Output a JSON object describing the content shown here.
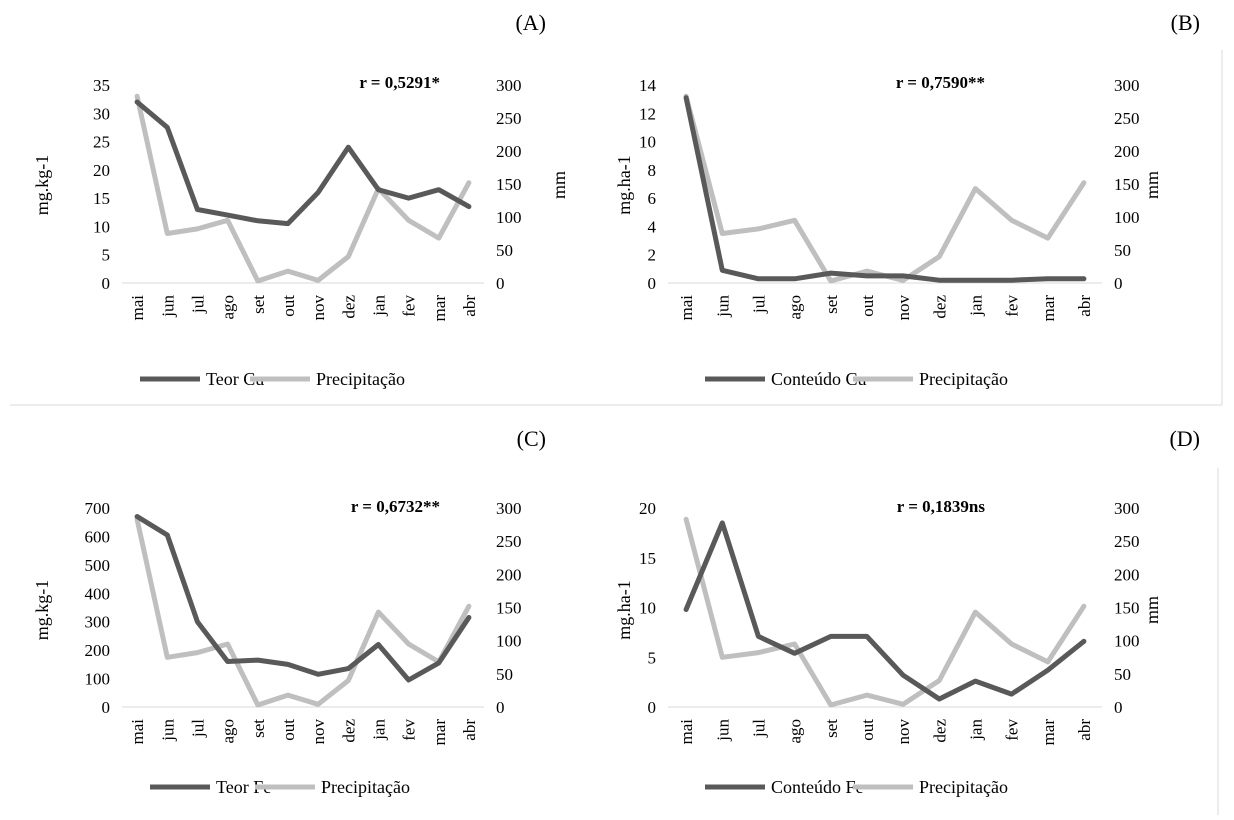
{
  "chart_data": [
    {
      "panel": "(A)",
      "type": "line",
      "categories": [
        "mai",
        "jun",
        "jul",
        "ago",
        "set",
        "out",
        "nov",
        "dez",
        "jan",
        "fev",
        "mar",
        "abr"
      ],
      "annotation": "r = 0,5291*",
      "ylabel_left": "mg.kg-1",
      "ylabel_right": "mm",
      "ylim_left": [
        0,
        35
      ],
      "yticks_left": [
        "0",
        "5",
        "10",
        "15",
        "20",
        "25",
        "30",
        "35"
      ],
      "ylim_right": [
        0,
        300
      ],
      "yticks_right": [
        "0",
        "50",
        "100",
        "150",
        "200",
        "250",
        "300"
      ],
      "series": [
        {
          "name": "Teor Cu",
          "axis": "left",
          "color": "#595959",
          "values": [
            32,
            27.5,
            13,
            12,
            11,
            10.5,
            16,
            24,
            16.5,
            15,
            16.5,
            13.5
          ]
        },
        {
          "name": "Precipitação",
          "axis": "right",
          "color": "#bfbfbf",
          "values": [
            283,
            75,
            82,
            95,
            3,
            18,
            4,
            40,
            143,
            95,
            68,
            152
          ]
        }
      ]
    },
    {
      "panel": "(B)",
      "type": "line",
      "categories": [
        "mai",
        "jun",
        "jul",
        "ago",
        "set",
        "out",
        "nov",
        "dez",
        "jan",
        "fev",
        "mar",
        "abr"
      ],
      "annotation": "r = 0,7590**",
      "ylabel_left": "mg.ha-1",
      "ylabel_right": "mm",
      "ylim_left": [
        0,
        14
      ],
      "yticks_left": [
        "0",
        "2",
        "4",
        "6",
        "8",
        "10",
        "12",
        "14"
      ],
      "ylim_right": [
        0,
        300
      ],
      "yticks_right": [
        "0",
        "50",
        "100",
        "150",
        "200",
        "250",
        "300"
      ],
      "series": [
        {
          "name": "Conteúdo Cu",
          "axis": "left",
          "color": "#595959",
          "values": [
            13.1,
            0.9,
            0.3,
            0.3,
            0.7,
            0.5,
            0.5,
            0.2,
            0.2,
            0.2,
            0.3,
            0.3
          ]
        },
        {
          "name": "Precipitação",
          "axis": "right",
          "color": "#bfbfbf",
          "values": [
            283,
            75,
            82,
            95,
            3,
            18,
            4,
            40,
            143,
            95,
            68,
            152
          ]
        }
      ]
    },
    {
      "panel": "(C)",
      "type": "line",
      "categories": [
        "mai",
        "jun",
        "jul",
        "ago",
        "set",
        "out",
        "nov",
        "dez",
        "jan",
        "fev",
        "mar",
        "abr"
      ],
      "annotation": "r = 0,6732**",
      "ylabel_left": "mg.kg-1",
      "ylabel_right": "",
      "ylim_left": [
        0,
        700
      ],
      "yticks_left": [
        "0",
        "100",
        "200",
        "300",
        "400",
        "500",
        "600",
        "700"
      ],
      "ylim_right": [
        0,
        300
      ],
      "yticks_right": [
        "0",
        "50",
        "100",
        "150",
        "200",
        "250",
        "300"
      ],
      "series": [
        {
          "name": "Teor Fe",
          "axis": "left",
          "color": "#595959",
          "values": [
            670,
            605,
            300,
            160,
            165,
            150,
            115,
            135,
            220,
            95,
            155,
            315
          ]
        },
        {
          "name": "Precipitação",
          "axis": "right",
          "color": "#bfbfbf",
          "values": [
            283,
            75,
            82,
            95,
            3,
            18,
            4,
            40,
            143,
            95,
            68,
            152
          ]
        }
      ]
    },
    {
      "panel": "(D)",
      "type": "line",
      "categories": [
        "mai",
        "jun",
        "jul",
        "ago",
        "set",
        "out",
        "nov",
        "dez",
        "jan",
        "fev",
        "mar",
        "abr"
      ],
      "annotation": "r = 0,1839ns",
      "ylabel_left": "mg.ha-1",
      "ylabel_right": "mm",
      "ylim_left": [
        0,
        20
      ],
      "yticks_left": [
        "0",
        "5",
        "10",
        "15",
        "20"
      ],
      "ylim_right": [
        0,
        300
      ],
      "yticks_right": [
        "0",
        "50",
        "100",
        "150",
        "200",
        "250",
        "300"
      ],
      "series": [
        {
          "name": "Conteúdo Fe",
          "axis": "left",
          "color": "#595959",
          "values": [
            9.8,
            18.5,
            7.1,
            5.4,
            7.1,
            7.1,
            3.2,
            0.8,
            2.6,
            1.3,
            3.7,
            6.6
          ]
        },
        {
          "name": "Precipitação",
          "axis": "right",
          "color": "#bfbfbf",
          "values": [
            283,
            75,
            82,
            95,
            3,
            18,
            4,
            40,
            143,
            95,
            68,
            152
          ]
        }
      ]
    }
  ]
}
